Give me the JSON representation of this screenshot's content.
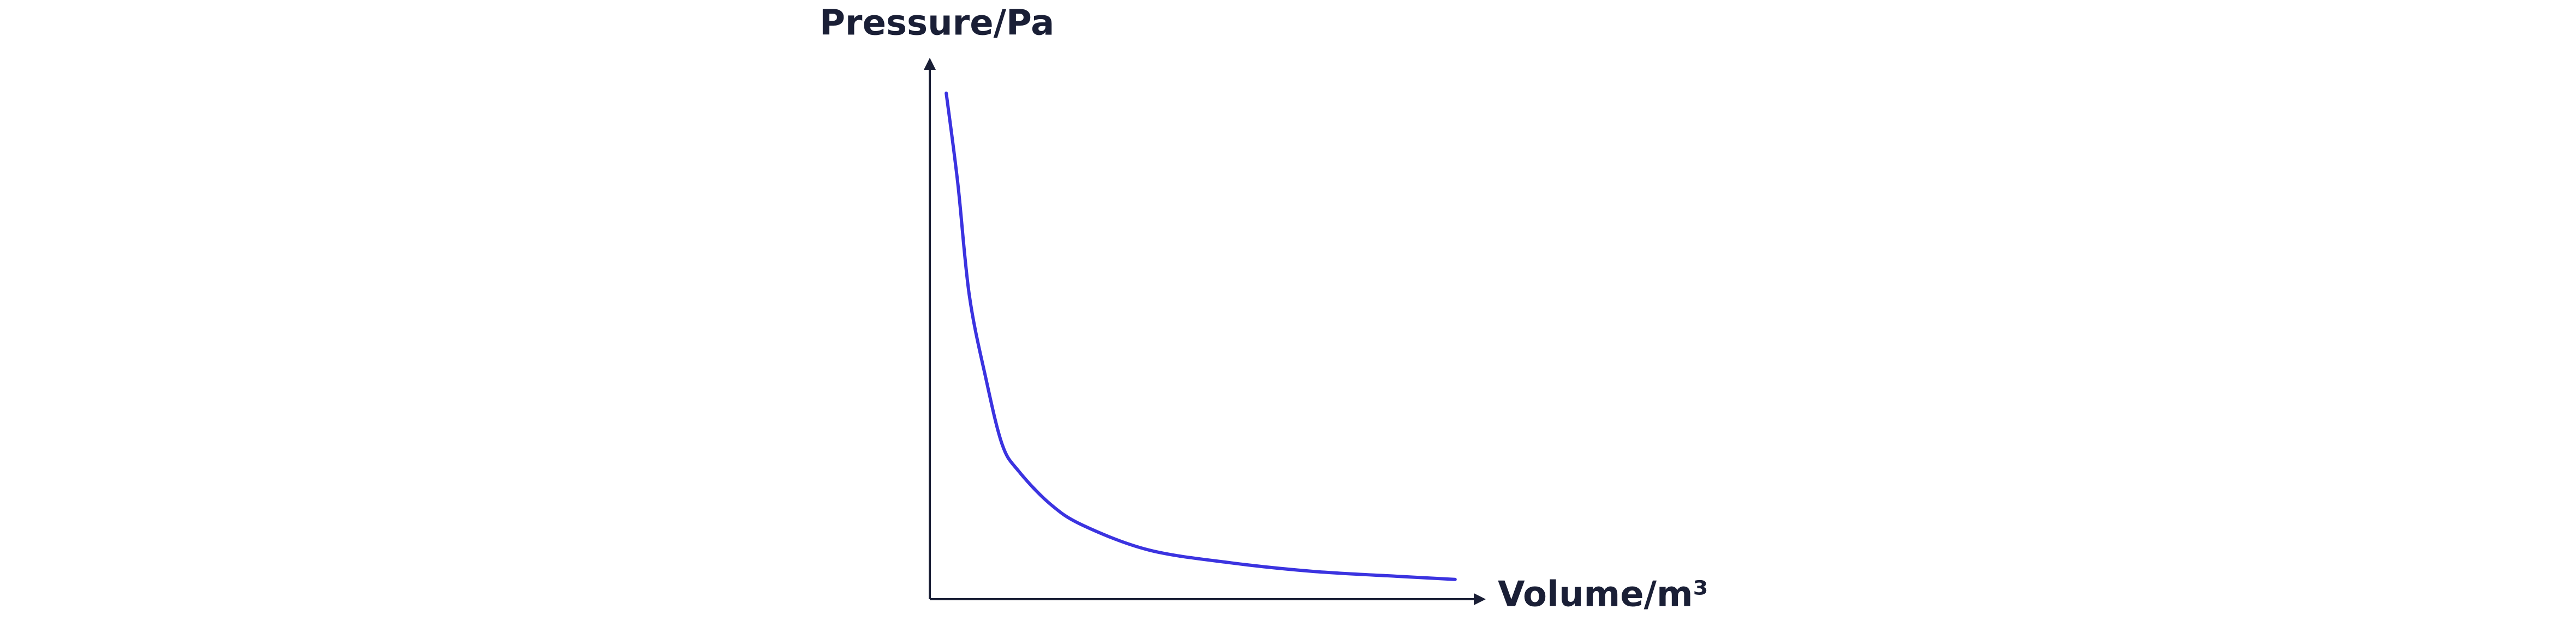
{
  "chart_data": {
    "type": "line",
    "x_label": "Volume/m³",
    "y_label": "Pressure/Pa",
    "x": [
      3,
      5.1,
      7.2,
      10.2,
      13.2,
      16.2,
      22,
      28,
      40,
      55,
      70,
      85,
      95.8
    ],
    "values": [
      94.8,
      78,
      57,
      41.5,
      29,
      24,
      17.8,
      13.8,
      9.2,
      6.8,
      5.2,
      4.3,
      3.7
    ],
    "color": "#3b33e0",
    "xlim": [
      0,
      100
    ],
    "ylim": [
      0,
      100
    ]
  }
}
